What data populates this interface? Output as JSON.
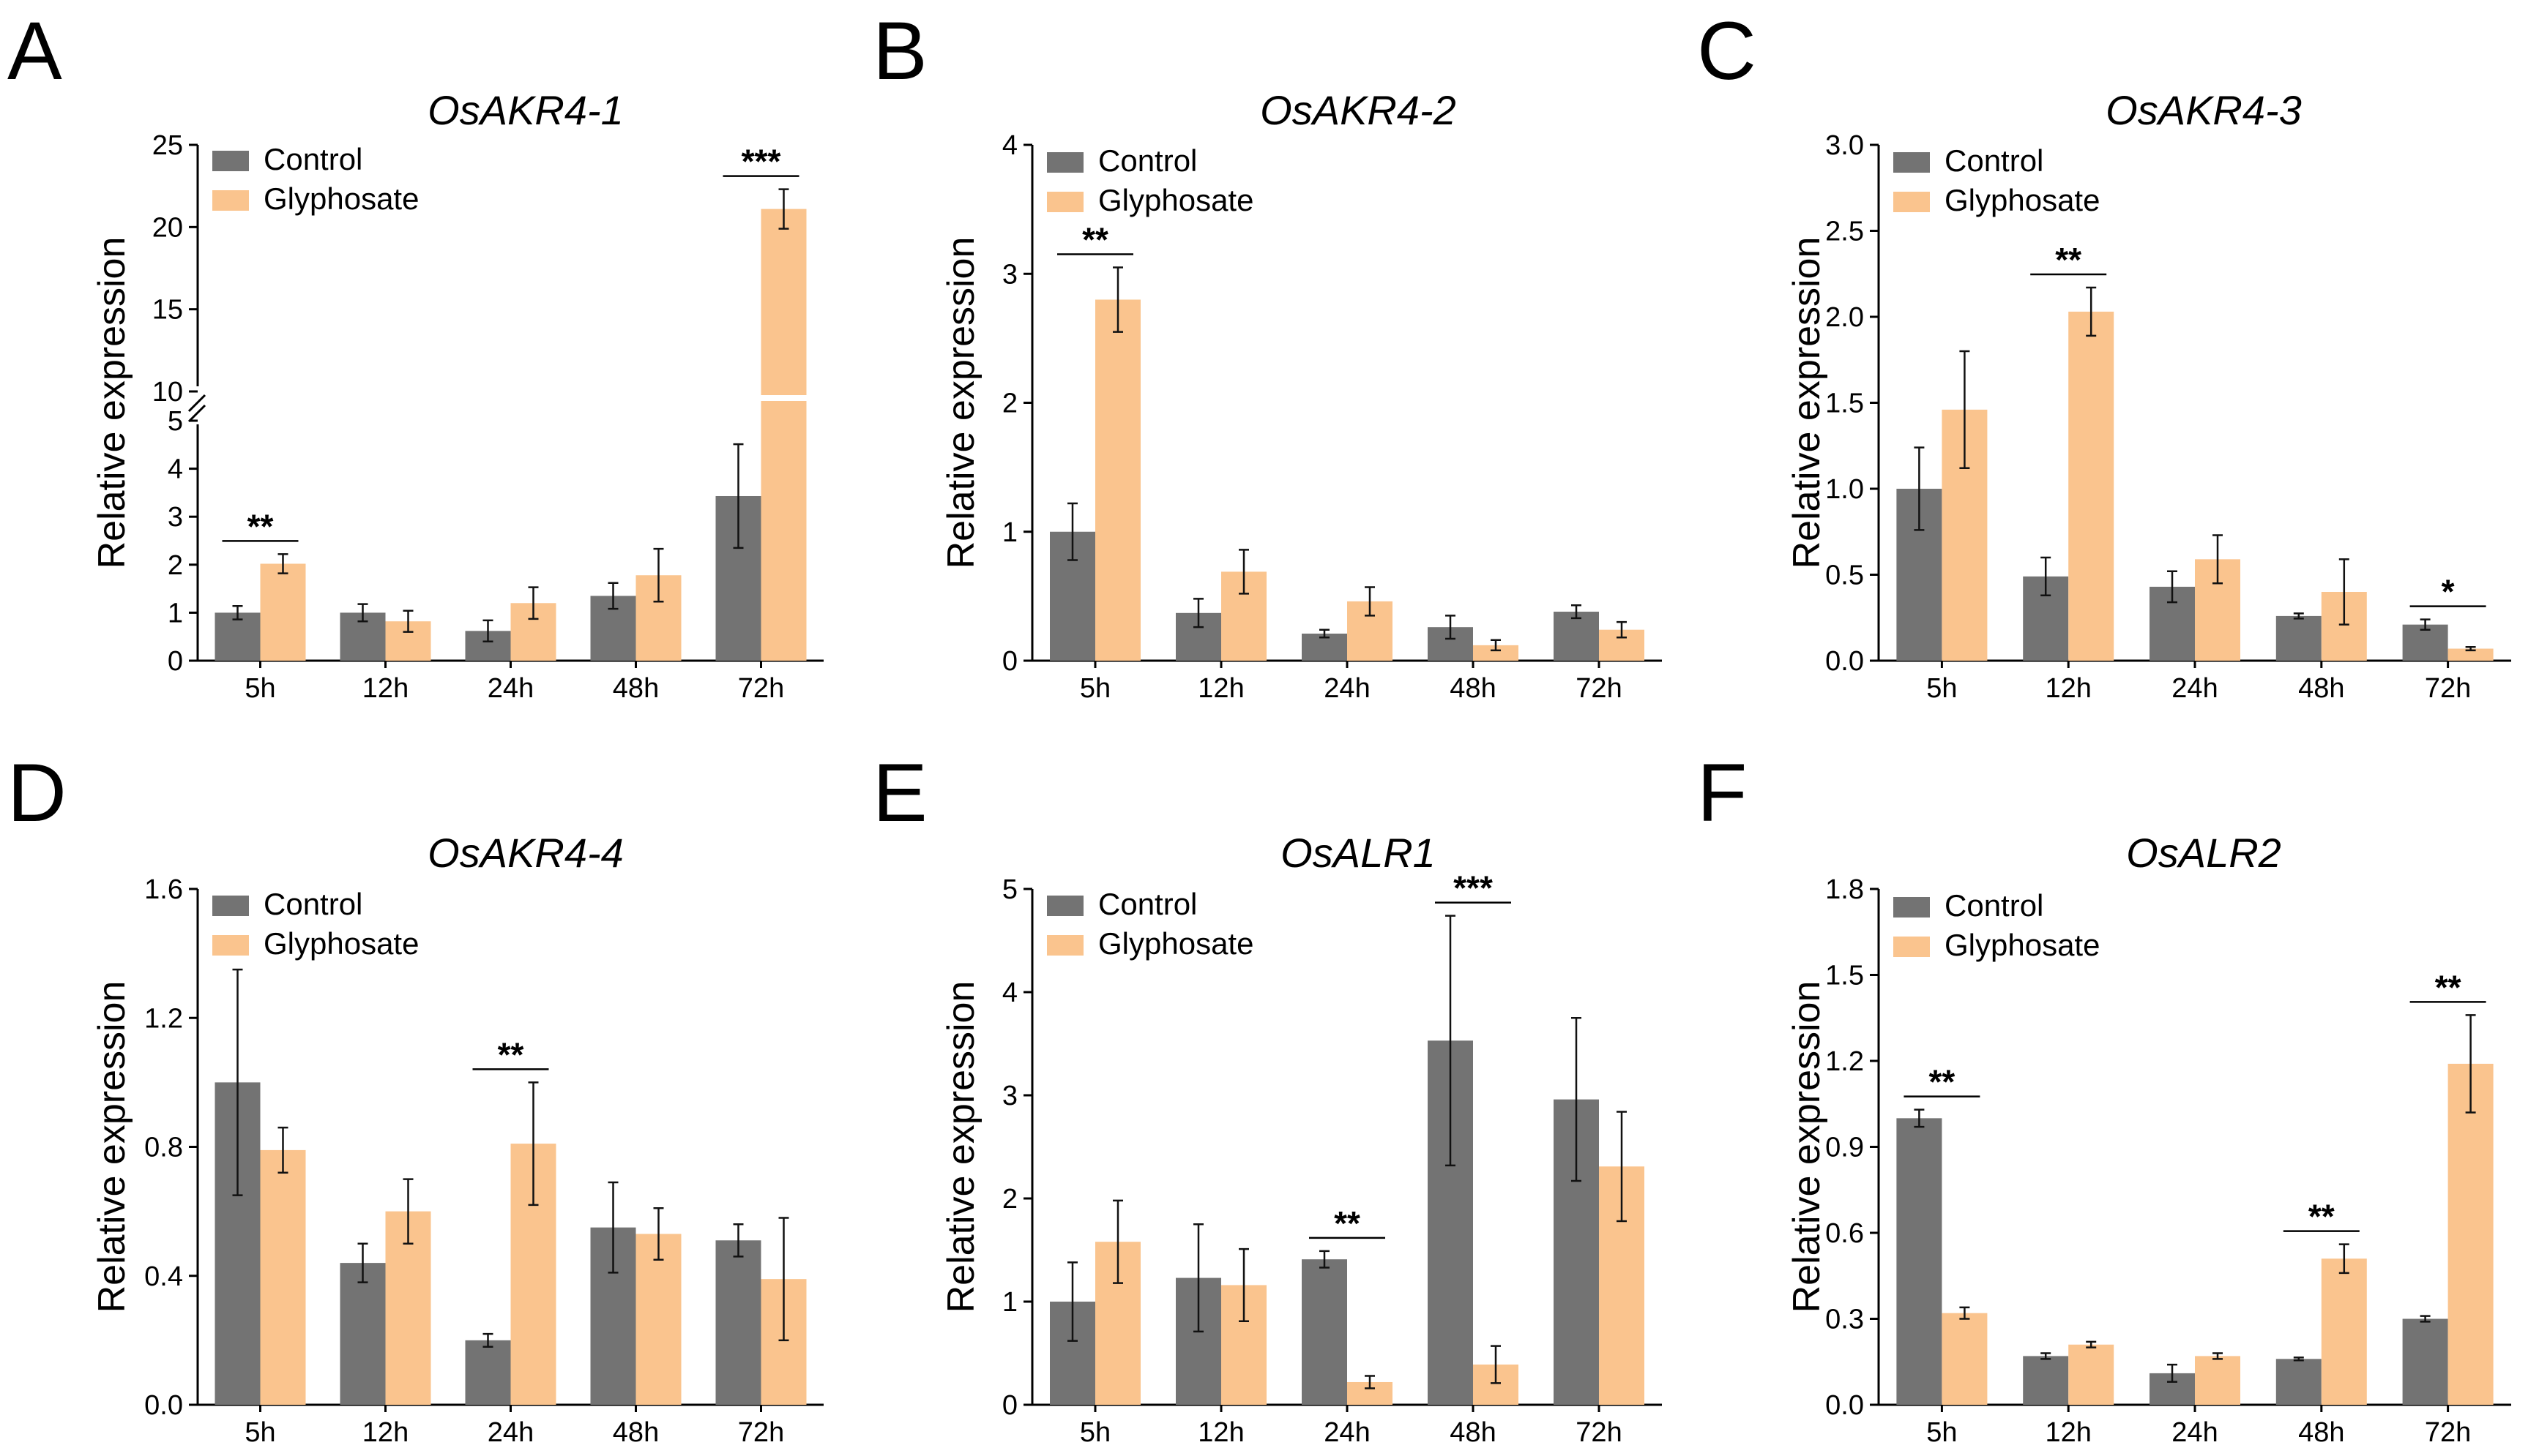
{
  "colors": {
    "control": "#737373",
    "glyphosate": "#fac48e"
  },
  "legend": {
    "control": "Control",
    "treatment": "Glyphosate"
  },
  "chart_data": [
    {
      "type": "bar",
      "panel": "A",
      "title": "OsAKR4-1",
      "ylabel": "Relative expression",
      "categories": [
        "5h",
        "12h",
        "24h",
        "48h",
        "72h"
      ],
      "broken_axis": true,
      "ylim": [
        0,
        25
      ],
      "yticks": [
        0,
        1,
        2,
        3,
        4,
        5,
        10,
        15,
        20,
        25
      ],
      "ytick_labels": [
        "0",
        "1",
        "2",
        "3",
        "4",
        "5",
        "10",
        "15",
        "20",
        "25"
      ],
      "series": [
        {
          "name": "Control",
          "values": [
            1.0,
            1.0,
            0.62,
            1.35,
            3.43
          ],
          "errors": [
            0.14,
            0.18,
            0.22,
            0.27,
            1.08
          ]
        },
        {
          "name": "Glyphosate",
          "values": [
            2.02,
            0.82,
            1.2,
            1.78,
            21.1
          ],
          "errors": [
            0.2,
            0.22,
            0.33,
            0.55,
            1.2
          ]
        }
      ],
      "significance": [
        {
          "category": "5h",
          "label": "**"
        },
        {
          "category": "72h",
          "label": "***"
        }
      ]
    },
    {
      "type": "bar",
      "panel": "B",
      "title": "OsAKR4-2",
      "ylabel": "Relative expression",
      "categories": [
        "5h",
        "12h",
        "24h",
        "48h",
        "72h"
      ],
      "ylim": [
        0,
        4
      ],
      "yticks": [
        0,
        1,
        2,
        3,
        4
      ],
      "ytick_labels": [
        "0",
        "1",
        "2",
        "3",
        "4"
      ],
      "series": [
        {
          "name": "Control",
          "values": [
            1.0,
            0.37,
            0.21,
            0.26,
            0.38
          ],
          "errors": [
            0.22,
            0.11,
            0.03,
            0.09,
            0.05
          ]
        },
        {
          "name": "Glyphosate",
          "values": [
            2.8,
            0.69,
            0.46,
            0.12,
            0.24
          ],
          "errors": [
            0.25,
            0.17,
            0.11,
            0.04,
            0.06
          ]
        }
      ],
      "significance": [
        {
          "category": "5h",
          "label": "**"
        }
      ]
    },
    {
      "type": "bar",
      "panel": "C",
      "title": "OsAKR4-3",
      "ylabel": "Relative expression",
      "categories": [
        "5h",
        "12h",
        "24h",
        "48h",
        "72h"
      ],
      "ylim": [
        0,
        3
      ],
      "yticks": [
        0,
        0.5,
        1,
        1.5,
        2,
        2.5,
        3
      ],
      "ytick_labels": [
        "0.0",
        "0.5",
        "1.0",
        "1.5",
        "2.0",
        "2.5",
        "3.0"
      ],
      "series": [
        {
          "name": "Control",
          "values": [
            1.0,
            0.49,
            0.43,
            0.26,
            0.21
          ],
          "errors": [
            0.24,
            0.11,
            0.09,
            0.015,
            0.03
          ]
        },
        {
          "name": "Glyphosate",
          "values": [
            1.46,
            2.03,
            0.59,
            0.4,
            0.07
          ],
          "errors": [
            0.34,
            0.14,
            0.14,
            0.19,
            0.01
          ]
        }
      ],
      "significance": [
        {
          "category": "12h",
          "label": "**"
        },
        {
          "category": "72h",
          "label": "*"
        }
      ]
    },
    {
      "type": "bar",
      "panel": "D",
      "title": "OsAKR4-4",
      "ylabel": "Relative expression",
      "categories": [
        "5h",
        "12h",
        "24h",
        "48h",
        "72h"
      ],
      "ylim": [
        0,
        1.6
      ],
      "yticks": [
        0,
        0.4,
        0.8,
        1.2,
        1.6
      ],
      "ytick_labels": [
        "0.0",
        "0.4",
        "0.8",
        "1.2",
        "1.6"
      ],
      "series": [
        {
          "name": "Control",
          "values": [
            1.0,
            0.44,
            0.2,
            0.55,
            0.51
          ],
          "errors": [
            0.35,
            0.06,
            0.02,
            0.14,
            0.05
          ]
        },
        {
          "name": "Glyphosate",
          "values": [
            0.79,
            0.6,
            0.81,
            0.53,
            0.39
          ],
          "errors": [
            0.07,
            0.1,
            0.19,
            0.08,
            0.19
          ]
        }
      ],
      "significance": [
        {
          "category": "24h",
          "label": "**"
        }
      ]
    },
    {
      "type": "bar",
      "panel": "E",
      "title": "OsALR1",
      "ylabel": "Relative expression",
      "categories": [
        "5h",
        "12h",
        "24h",
        "48h",
        "72h"
      ],
      "ylim": [
        0,
        5
      ],
      "yticks": [
        0,
        1,
        2,
        3,
        4,
        5
      ],
      "ytick_labels": [
        "0",
        "1",
        "2",
        "3",
        "4",
        "5"
      ],
      "series": [
        {
          "name": "Control",
          "values": [
            1.0,
            1.23,
            1.41,
            3.53,
            2.96
          ],
          "errors": [
            0.38,
            0.52,
            0.08,
            1.21,
            0.79
          ]
        },
        {
          "name": "Glyphosate",
          "values": [
            1.58,
            1.16,
            0.22,
            0.39,
            2.31
          ],
          "errors": [
            0.4,
            0.35,
            0.06,
            0.18,
            0.53
          ]
        }
      ],
      "significance": [
        {
          "category": "24h",
          "label": "**"
        },
        {
          "category": "48h",
          "label": "***"
        }
      ]
    },
    {
      "type": "bar",
      "panel": "F",
      "title": "OsALR2",
      "ylabel": "Relative expression",
      "categories": [
        "5h",
        "12h",
        "24h",
        "48h",
        "72h"
      ],
      "ylim": [
        0,
        1.8
      ],
      "yticks": [
        0,
        0.3,
        0.6,
        0.9,
        1.2,
        1.5,
        1.8
      ],
      "ytick_labels": [
        "0.0",
        "0.3",
        "0.6",
        "0.9",
        "1.2",
        "1.5",
        "1.8"
      ],
      "series": [
        {
          "name": "Control",
          "values": [
            1.0,
            0.17,
            0.11,
            0.16,
            0.3
          ],
          "errors": [
            0.03,
            0.01,
            0.03,
            0.005,
            0.01
          ]
        },
        {
          "name": "Glyphosate",
          "values": [
            0.32,
            0.21,
            0.17,
            0.51,
            1.19
          ],
          "errors": [
            0.02,
            0.01,
            0.01,
            0.05,
            0.17
          ]
        }
      ],
      "significance": [
        {
          "category": "5h",
          "label": "**"
        },
        {
          "category": "48h",
          "label": "**"
        },
        {
          "category": "72h",
          "label": "**"
        }
      ]
    }
  ]
}
